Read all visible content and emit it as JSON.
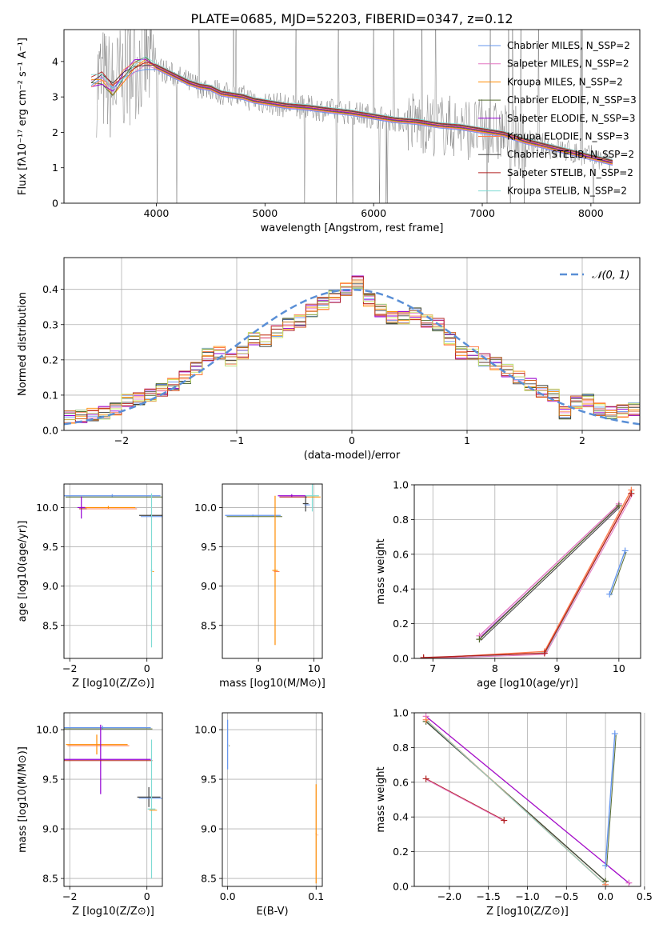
{
  "figure": {
    "title": "PLATE=0685, MJD=52203, FIBERID=0347, z=0.12"
  },
  "colors": {
    "model_colors": [
      "#6495ed",
      "#e377c2",
      "#ff8c00",
      "#556b2f",
      "#9400d3",
      "#ff7f50",
      "#404040",
      "#b22222",
      "#7fdbd4"
    ],
    "data_color": "#808080",
    "normal_color": "#5a8fd6",
    "extra_hist": [
      "#c9e86b",
      "#d2691e",
      "#98a060"
    ]
  },
  "chart_data": [
    {
      "id": "spectrum",
      "type": "line",
      "xlabel": "wavelength [Angstrom, rest frame]",
      "ylabel": "Flux [fλ10⁻¹⁷ erg cm⁻² s⁻¹ A⁻¹]",
      "xlim": [
        3150,
        8450
      ],
      "ylim": [
        0,
        4.9
      ],
      "xticks": [
        4000,
        5000,
        6000,
        7000,
        8000
      ],
      "yticks": [
        0,
        1,
        2,
        3,
        4
      ],
      "grid": false,
      "legend_position": "top-right",
      "legend": [
        "Chabrier MILES, N_SSP=2",
        "Salpeter MILES, N_SSP=2",
        "Kroupa MILES, N_SSP=2",
        "Chabrier ELODIE, N_SSP=3",
        "Salpeter ELODIE, N_SSP=3",
        "Kroupa ELODIE, N_SSP=3",
        "Chabrier STELIB, N_SSP=2",
        "Salpeter STELIB, N_SSP=2",
        "Kroupa STELIB, N_SSP=2"
      ],
      "model_x": [
        3400,
        3500,
        3600,
        3700,
        3800,
        3900,
        4000,
        4100,
        4200,
        4300,
        4400,
        4500,
        4600,
        4700,
        4800,
        4900,
        5000,
        5200,
        5400,
        5600,
        5800,
        6000,
        6200,
        6400,
        6600,
        6800,
        7000,
        7200,
        7400,
        7600,
        7800,
        8000,
        8200
      ],
      "model_y": [
        3.4,
        3.5,
        3.2,
        3.6,
        3.9,
        4.0,
        3.85,
        3.7,
        3.55,
        3.4,
        3.3,
        3.25,
        3.1,
        3.05,
        3.0,
        2.9,
        2.85,
        2.75,
        2.7,
        2.62,
        2.55,
        2.45,
        2.35,
        2.3,
        2.2,
        2.15,
        2.05,
        1.95,
        1.75,
        1.6,
        1.45,
        1.3,
        1.15
      ]
    },
    {
      "id": "residuals",
      "type": "histogram",
      "xlabel": "(data-model)/error",
      "ylabel": "Normed distribution",
      "xlim": [
        -2.5,
        2.5
      ],
      "ylim": [
        0,
        0.49
      ],
      "xticks": [
        -2,
        -1,
        0,
        1,
        2
      ],
      "yticks": [
        0.0,
        0.1,
        0.2,
        0.3,
        0.4
      ],
      "grid": true,
      "legend_position": "top-right",
      "legend": [
        "𝒩(0, 1)"
      ],
      "bins_edges": [
        -2.5,
        -2.4,
        -2.3,
        -2.2,
        -2.1,
        -2.0,
        -1.9,
        -1.8,
        -1.7,
        -1.6,
        -1.5,
        -1.4,
        -1.3,
        -1.2,
        -1.1,
        -1.0,
        -0.9,
        -0.8,
        -0.7,
        -0.6,
        -0.5,
        -0.4,
        -0.3,
        -0.2,
        -0.1,
        0.0,
        0.1,
        0.2,
        0.3,
        0.4,
        0.5,
        0.6,
        0.7,
        0.8,
        0.9,
        1.0,
        1.1,
        1.2,
        1.3,
        1.4,
        1.5,
        1.6,
        1.7,
        1.8,
        1.9,
        2.0,
        2.1,
        2.2,
        2.3,
        2.4,
        2.5
      ],
      "hist_values": [
        0.038,
        0.04,
        0.045,
        0.05,
        0.06,
        0.085,
        0.09,
        0.1,
        0.115,
        0.13,
        0.15,
        0.175,
        0.215,
        0.22,
        0.2,
        0.22,
        0.26,
        0.255,
        0.28,
        0.3,
        0.31,
        0.34,
        0.36,
        0.38,
        0.4,
        0.42,
        0.37,
        0.34,
        0.32,
        0.32,
        0.33,
        0.31,
        0.3,
        0.26,
        0.22,
        0.22,
        0.2,
        0.19,
        0.17,
        0.15,
        0.13,
        0.11,
        0.1,
        0.05,
        0.08,
        0.085,
        0.06,
        0.05,
        0.055,
        0.06
      ],
      "normal_series": "N(0,1)"
    },
    {
      "id": "age_vs_Z",
      "type": "scatter",
      "xlabel": "Z [log10(Z/Z⊙)]",
      "ylabel": "age [log10(age/yr)]",
      "xlim": [
        -2.15,
        0.4
      ],
      "ylim": [
        8.08,
        10.3
      ],
      "xticks": [
        -2,
        0
      ],
      "yticks": [
        8.5,
        9.0,
        9.5,
        10.0
      ],
      "grid": true,
      "points": [
        {
          "x": -0.9,
          "y": 10.15,
          "xerr": 1.25,
          "yerr": 0.02
        },
        {
          "x": -1.0,
          "y": 10.0,
          "xerr": 0.7,
          "yerr": 0.02
        },
        {
          "x": -1.7,
          "y": 10.0,
          "xerr": 0.1,
          "yerr": 0.14
        },
        {
          "x": 0.1,
          "y": 9.9,
          "xerr": 0.3,
          "yerr": 0.01
        },
        {
          "x": 0.12,
          "y": 9.2,
          "xerr": 0.02,
          "yerr": 0.98
        }
      ]
    },
    {
      "id": "age_vs_mass",
      "type": "scatter",
      "xlabel": "mass [log10(M/M⊙)]",
      "ylabel": "",
      "xlim": [
        8.35,
        10.15
      ],
      "ylim": [
        8.08,
        10.3
      ],
      "xticks": [
        9,
        10
      ],
      "yticks": [
        8.5,
        9.0,
        9.5,
        10.0
      ],
      "grid": true,
      "points": [
        {
          "x": 8.9,
          "y": 9.9,
          "xerr": 0.5,
          "yerr": 0.01
        },
        {
          "x": 9.3,
          "y": 9.2,
          "xerr": 0.05,
          "yerr": 0.95
        },
        {
          "x": 9.6,
          "y": 10.15,
          "xerr": 0.25,
          "yerr": 0.02
        },
        {
          "x": 9.85,
          "y": 10.05,
          "xerr": 0.05,
          "yerr": 0.1
        },
        {
          "x": 9.97,
          "y": 10.15,
          "xerr": 0.12,
          "yerr": 0.2
        }
      ]
    },
    {
      "id": "weight_vs_age",
      "type": "line",
      "xlabel": "age [log10(age/yr)]",
      "ylabel": "mass weight",
      "xlim": [
        6.7,
        10.35
      ],
      "ylim": [
        0,
        1
      ],
      "xticks": [
        7,
        8,
        9,
        10
      ],
      "yticks": [
        0.0,
        0.2,
        0.4,
        0.6,
        0.8,
        1.0
      ],
      "grid": true,
      "series": [
        {
          "points": [
            [
              7.75,
              0.13
            ],
            [
              10.0,
              0.89
            ]
          ]
        },
        {
          "points": [
            [
              7.75,
              0.11
            ],
            [
              10.0,
              0.88
            ]
          ]
        },
        {
          "points": [
            [
              6.85,
              0.0
            ],
            [
              8.8,
              0.04
            ],
            [
              10.2,
              0.97
            ]
          ]
        },
        {
          "points": [
            [
              6.85,
              0.005
            ],
            [
              8.8,
              0.03
            ],
            [
              10.2,
              0.95
            ]
          ]
        },
        {
          "points": [
            [
              9.85,
              0.37
            ],
            [
              10.1,
              0.62
            ]
          ]
        }
      ]
    },
    {
      "id": "mass_vs_Z",
      "type": "scatter",
      "xlabel": "Z [log10(Z/Z⊙)]",
      "ylabel": "mass [log10(M/M⊙)]",
      "xlim": [
        -2.15,
        0.4
      ],
      "ylim": [
        8.42,
        10.17
      ],
      "xticks": [
        -2,
        0
      ],
      "yticks": [
        8.5,
        9.0,
        9.5,
        10.0
      ],
      "grid": true,
      "points": [
        {
          "x": -1.15,
          "y": 10.02,
          "xerr": 1.25,
          "yerr": 0.02
        },
        {
          "x": -1.3,
          "y": 9.85,
          "xerr": 0.8,
          "yerr": 0.1
        },
        {
          "x": -1.2,
          "y": 9.7,
          "xerr": 1.3,
          "yerr": 0.35
        },
        {
          "x": 0.05,
          "y": 9.32,
          "xerr": 0.3,
          "yerr": 0.1
        },
        {
          "x": 0.12,
          "y": 9.2,
          "xerr": 0.1,
          "yerr": 0.7
        }
      ]
    },
    {
      "id": "mass_vs_ebv",
      "type": "scatter",
      "xlabel": "E(B-V)",
      "ylabel": "",
      "xlim": [
        -0.006,
        0.107
      ],
      "ylim": [
        8.42,
        10.17
      ],
      "xticks": [
        0.0,
        0.1
      ],
      "yticks": [
        8.5,
        9.0,
        9.5,
        10.0
      ],
      "grid": true,
      "points": [
        {
          "x": 0.0,
          "y": 9.85,
          "xerr": 0.0005,
          "yerr": 0.25
        },
        {
          "x": 0.1,
          "y": 8.95,
          "xerr": 0.0005,
          "yerr": 0.5
        }
      ]
    },
    {
      "id": "weight_vs_Z",
      "type": "line",
      "xlabel": "Z [log10(Z/Z⊙)]",
      "ylabel": "mass weight",
      "xlim": [
        -2.45,
        0.45
      ],
      "ylim": [
        0,
        1
      ],
      "xticks": [
        -2.0,
        -1.5,
        -1.0,
        -0.5,
        0.0,
        0.5
      ],
      "yticks": [
        0.0,
        0.2,
        0.4,
        0.6,
        0.8,
        1.0
      ],
      "grid": true,
      "series": [
        {
          "points": [
            [
              -2.3,
              0.98
            ],
            [
              0.3,
              0.02
            ]
          ]
        },
        {
          "points": [
            [
              -2.3,
              0.95
            ],
            [
              0.0,
              0.03
            ]
          ]
        },
        {
          "points": [
            [
              -2.3,
              0.96
            ],
            [
              0.0,
              0.01
            ]
          ]
        },
        {
          "points": [
            [
              -2.3,
              0.62
            ],
            [
              -1.3,
              0.38
            ]
          ]
        },
        {
          "points": [
            [
              0.0,
              0.12
            ],
            [
              0.12,
              0.88
            ]
          ]
        }
      ]
    }
  ]
}
